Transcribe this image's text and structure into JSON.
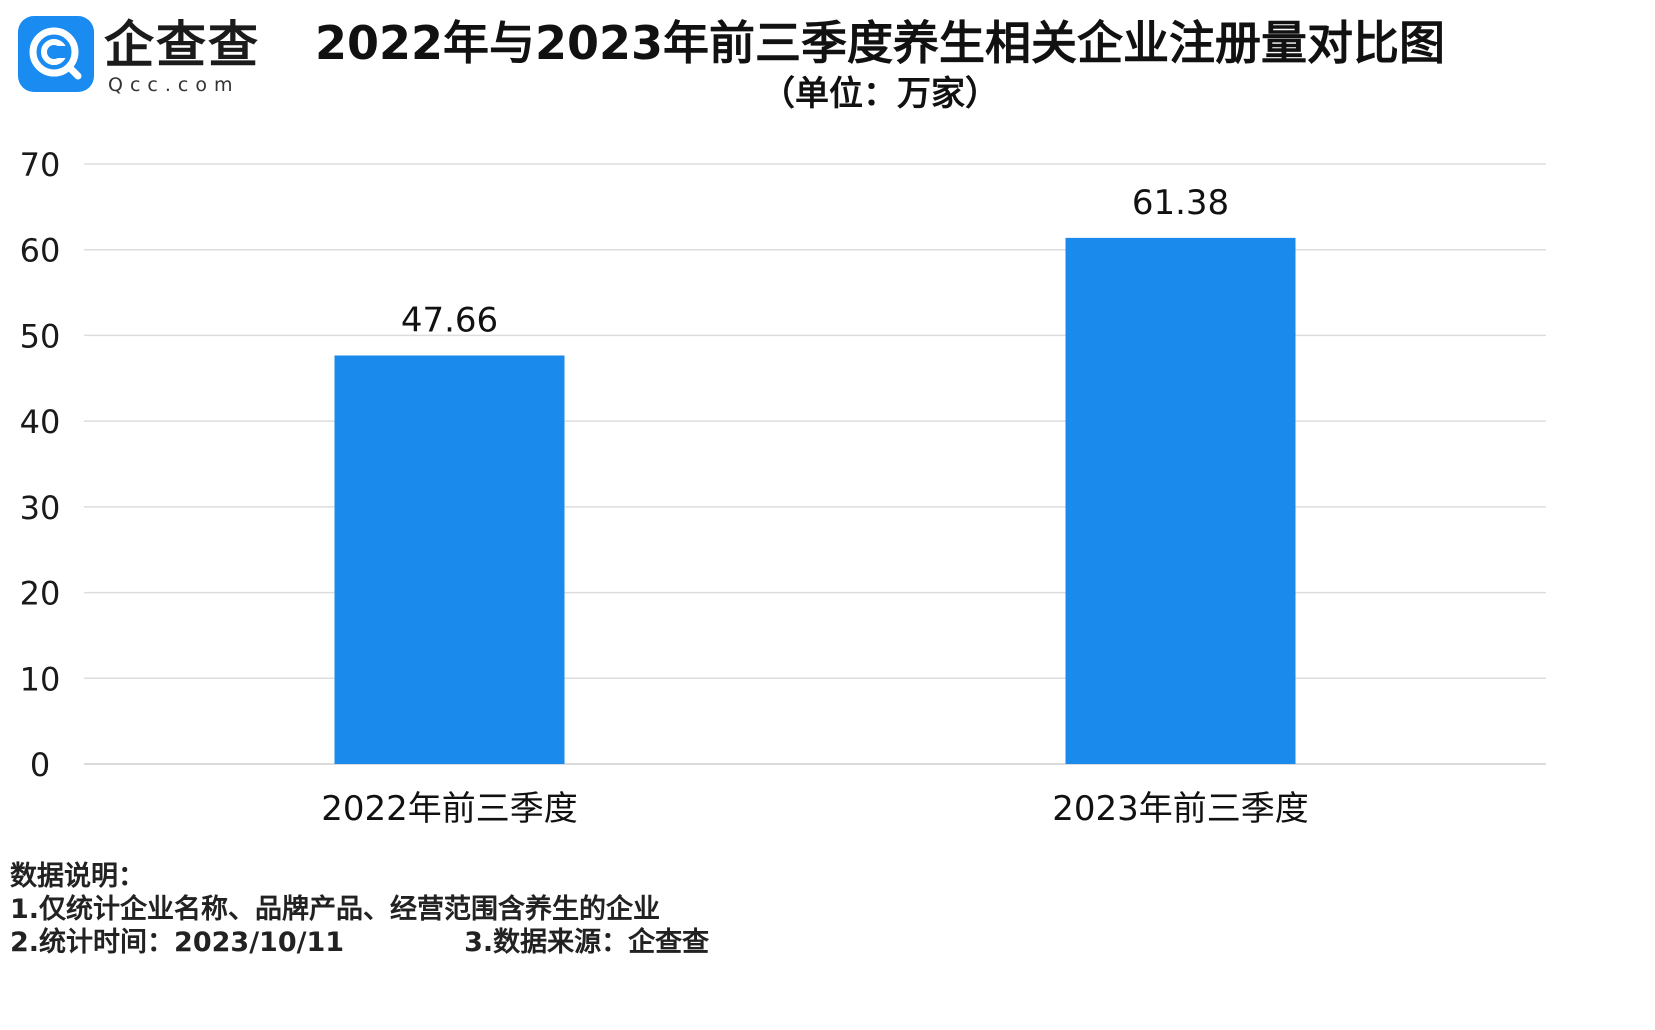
{
  "logo": {
    "name": "企查查",
    "domain": "Qcc.com",
    "icon": "qcc-search-logo-icon",
    "color": "#1a8bf0"
  },
  "title": "2022年与2023年前三季度养生相关企业注册量对比图",
  "subtitle": "（单位：万家）",
  "chart_data": {
    "type": "bar",
    "categories": [
      "2022年前三季度",
      "2023年前三季度"
    ],
    "values": [
      47.66,
      61.38
    ],
    "value_labels": [
      "47.66",
      "61.38"
    ],
    "title": "2022年与2023年前三季度养生相关企业注册量对比图",
    "subtitle": "（单位：万家）",
    "xlabel": "",
    "ylabel": "",
    "ylim": [
      0,
      70
    ],
    "yticks": [
      "0",
      "10",
      "20",
      "30",
      "40",
      "50",
      "60",
      "70"
    ],
    "grid": true,
    "legend": "none",
    "bar_color": "#1a8aec",
    "grid_color": "#dddddd"
  },
  "notes": {
    "heading": "数据说明：",
    "line1": "1.仅统计企业名称、品牌产品、经营范围含养生的企业",
    "line2_left": "2.统计时间：2023/10/11",
    "line2_right": "3.数据来源：企查查"
  }
}
